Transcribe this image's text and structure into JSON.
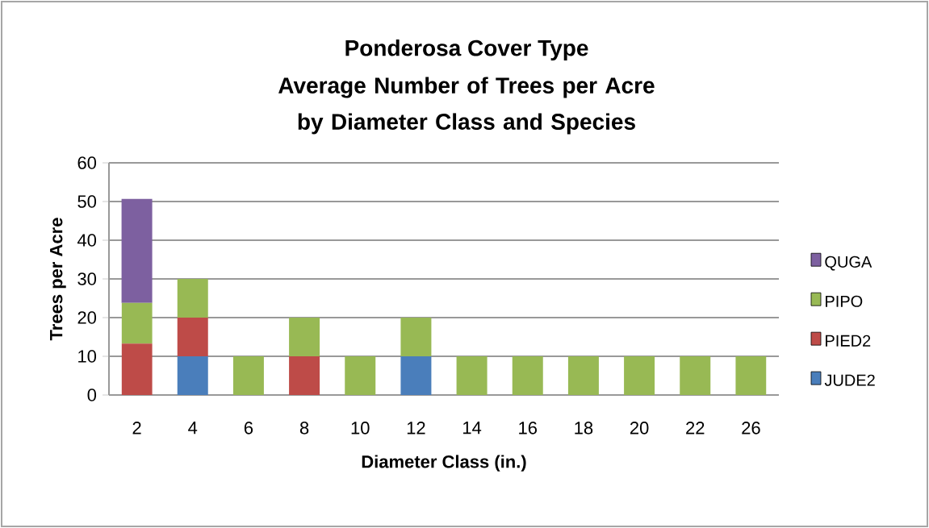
{
  "chart_data": {
    "type": "bar",
    "stacked": true,
    "title": "Ponderosa Cover Type",
    "subtitle": "Average Number of Trees per Acre by Diameter Class and Species",
    "xlabel": "Diameter Class (in.)",
    "ylabel": "Trees per Acre",
    "categories": [
      "2",
      "4",
      "6",
      "8",
      "10",
      "12",
      "14",
      "16",
      "18",
      "20",
      "22",
      "26"
    ],
    "series": [
      {
        "name": "JUDE2",
        "color": "#4a7ebb",
        "values": [
          0,
          10,
          0,
          0,
          0,
          10,
          0,
          0,
          0,
          0,
          0,
          0
        ]
      },
      {
        "name": "PIED2",
        "color": "#be4b48",
        "values": [
          13.3,
          10,
          0,
          10,
          0,
          0,
          0,
          0,
          0,
          0,
          0,
          0
        ]
      },
      {
        "name": "PIPO",
        "color": "#98b954",
        "values": [
          10.5,
          10,
          10,
          10,
          10,
          10,
          10,
          10,
          10,
          10,
          10,
          10
        ]
      },
      {
        "name": "QUGA",
        "color": "#7d60a0",
        "values": [
          26.9,
          0,
          0,
          0,
          0,
          0,
          0,
          0,
          0,
          0,
          0,
          0
        ]
      }
    ],
    "ylim": [
      0,
      60
    ],
    "yticks": [
      0,
      10,
      20,
      30,
      40,
      50,
      60
    ],
    "grid": "y",
    "legend": "right"
  }
}
